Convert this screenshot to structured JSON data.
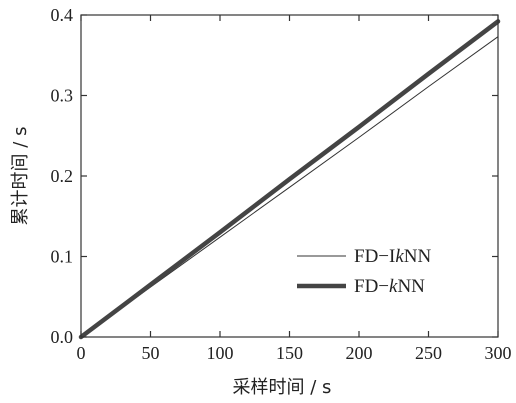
{
  "chart_data": {
    "type": "line",
    "xlabel": "采样时间 / s",
    "ylabel": "累计时间 / s",
    "xlim": [
      0,
      300
    ],
    "ylim": [
      0,
      0.4
    ],
    "x_ticks": [
      "0",
      "50",
      "100",
      "150",
      "200",
      "250",
      "300"
    ],
    "y_ticks": [
      "0.0",
      "0.1",
      "0.2",
      "0.3",
      "0.4"
    ],
    "grid": false,
    "legend_position": "lower-right",
    "series": [
      {
        "name_prefix": "FD−I",
        "name_italic": "k",
        "name_suffix": "NN",
        "color": "#333333",
        "style": "thin",
        "x": [
          0,
          50,
          100,
          150,
          200,
          250,
          300
        ],
        "y": [
          0,
          0.062,
          0.124,
          0.186,
          0.248,
          0.311,
          0.373
        ]
      },
      {
        "name_prefix": "FD−",
        "name_italic": "k",
        "name_suffix": "NN",
        "color": "#444444",
        "style": "thick",
        "x": [
          0,
          50,
          100,
          150,
          200,
          250,
          300
        ],
        "y": [
          0,
          0.065,
          0.13,
          0.196,
          0.261,
          0.327,
          0.392
        ]
      }
    ]
  }
}
